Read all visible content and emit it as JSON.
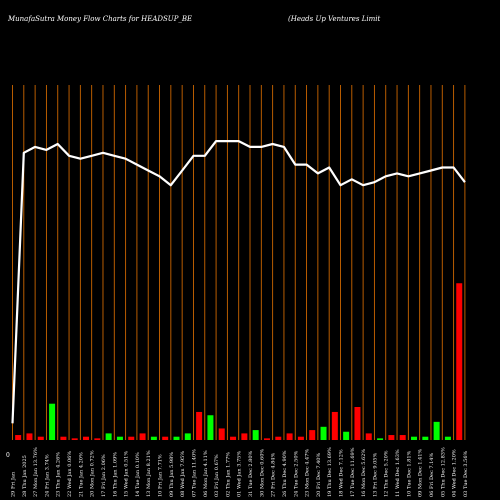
{
  "header": {
    "left": "MunafaSutra  Money Flow  Charts for HEADSUP_BE",
    "right": "(Heads Up Ventures Limit"
  },
  "colors": {
    "background": "#000000",
    "gridline": "#cc6600",
    "line": "#ffffff",
    "up_bar": "#00ff00",
    "down_bar": "#ff0000",
    "text": "#ffffff"
  },
  "chart_data": {
    "type": "bar",
    "title": "MunafaSutra  Money Flow  Charts for HEADSUP_BE",
    "y_zero_label": "0",
    "x_tick_labels": [
      "29 Fri Jan",
      "28 Thu Jan 2025",
      "27 Mon Jan 13.76%",
      "24 Fri Jan 3.74%",
      "23 Thu Jan 4.26%",
      "22 Wed Jan 0.06%",
      "21 Tue Jan 4.20%",
      "20 Mon Jan 0.72%",
      "17 Fri Jan 2.06%",
      "16 Thu Jan 1.09%",
      "15 Wed Jan 0.51%",
      "14 Tue Jan 0.10%",
      "13 Mon Jan 8.21%",
      "10 Fri Jan 7.71%",
      "09 Thu Jan 5.98%",
      "08 Wed Jan 7.95%",
      "07 Tue Jan 11.40%",
      "06 Mon Jan 4.11%",
      "03 Fri Jan 0.67%",
      "02 Thu Jan 1.77%",
      "01 Wed Jan 3.75%",
      "31 Tue Dec 2.80%",
      "30 Mon Dec 0.60%",
      "27 Fri Dec 4.84%",
      "26 Thu Dec 4.90%",
      "24 Tue Dec 2.50%",
      "23 Mon Dec 4.47%",
      "20 Fri Dec 7.40%",
      "19 Thu Dec 13.69%",
      "18 Wed Dec 7.12%",
      "17 Tue Dec 11.69%",
      "16 Mon Dec 5.62%",
      "13 Fri Dec 9.05%",
      "12 Thu Dec 5.20%",
      "11 Wed Dec 1.63%",
      "10 Tue Dec 1.81%",
      "09 Mon Dec 1.41%",
      "06 Fri Dec 7.14%",
      "05 Thu Dec 12.83%",
      "04 Wed Dec 1.20%",
      "03 Tue Dec 3.56%"
    ],
    "bars": [
      {
        "value": 3,
        "dir": "down"
      },
      {
        "value": 4,
        "dir": "down"
      },
      {
        "value": 2,
        "dir": "down"
      },
      {
        "value": 22,
        "dir": "up"
      },
      {
        "value": 2,
        "dir": "down"
      },
      {
        "value": 1,
        "dir": "down"
      },
      {
        "value": 2,
        "dir": "down"
      },
      {
        "value": 1,
        "dir": "down"
      },
      {
        "value": 4,
        "dir": "up"
      },
      {
        "value": 2,
        "dir": "up"
      },
      {
        "value": 2,
        "dir": "down"
      },
      {
        "value": 4,
        "dir": "down"
      },
      {
        "value": 2,
        "dir": "up"
      },
      {
        "value": 2,
        "dir": "down"
      },
      {
        "value": 2,
        "dir": "up"
      },
      {
        "value": 4,
        "dir": "up"
      },
      {
        "value": 17,
        "dir": "down"
      },
      {
        "value": 15,
        "dir": "up"
      },
      {
        "value": 7,
        "dir": "down"
      },
      {
        "value": 2,
        "dir": "down"
      },
      {
        "value": 4,
        "dir": "down"
      },
      {
        "value": 6,
        "dir": "up"
      },
      {
        "value": 1,
        "dir": "down"
      },
      {
        "value": 2,
        "dir": "down"
      },
      {
        "value": 4,
        "dir": "down"
      },
      {
        "value": 2,
        "dir": "down"
      },
      {
        "value": 6,
        "dir": "down"
      },
      {
        "value": 8,
        "dir": "up"
      },
      {
        "value": 17,
        "dir": "down"
      },
      {
        "value": 5,
        "dir": "up"
      },
      {
        "value": 20,
        "dir": "down"
      },
      {
        "value": 4,
        "dir": "down"
      },
      {
        "value": 1,
        "dir": "up"
      },
      {
        "value": 3,
        "dir": "down"
      },
      {
        "value": 3,
        "dir": "down"
      },
      {
        "value": 2,
        "dir": "up"
      },
      {
        "value": 2,
        "dir": "up"
      },
      {
        "value": 11,
        "dir": "up"
      },
      {
        "value": 2,
        "dir": "up"
      },
      {
        "value": 95,
        "dir": "down"
      }
    ],
    "line": [
      5,
      97,
      99,
      98,
      100,
      96,
      95,
      96,
      97,
      96,
      95,
      93,
      91,
      89,
      86,
      91,
      96,
      96,
      101,
      101,
      101,
      99,
      99,
      100,
      99,
      93,
      93,
      90,
      92,
      86,
      88,
      86,
      87,
      89,
      90,
      89,
      90,
      91,
      92,
      92,
      87
    ]
  }
}
